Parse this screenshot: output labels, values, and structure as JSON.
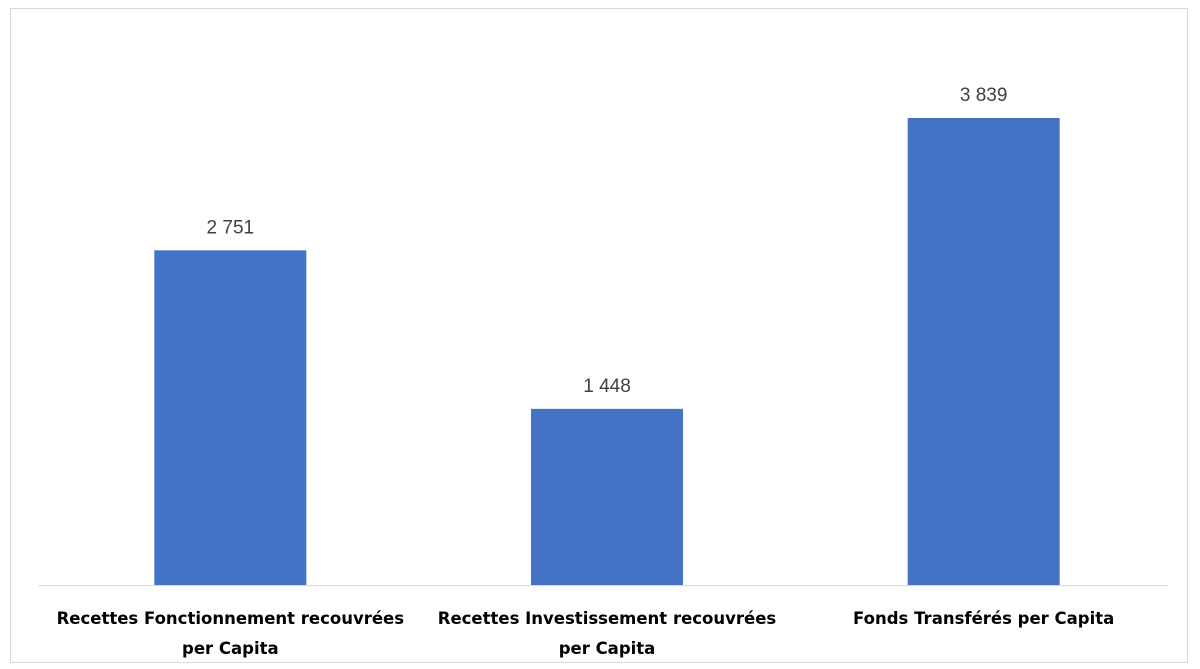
{
  "chart_data": {
    "type": "bar",
    "categories": [
      [
        "Recettes Fonctionnement recouvrées",
        "per Capita"
      ],
      [
        "Recettes Investissement  recouvrées",
        "per Capita"
      ],
      [
        "Fonds Transférés per Capita"
      ]
    ],
    "values": [
      2751,
      1448,
      3839
    ],
    "value_labels": [
      "2 751",
      "1 448",
      "3 839"
    ],
    "title": "",
    "xlabel": "",
    "ylabel": "",
    "ylim": [
      0,
      4500
    ],
    "grid": false,
    "legend": "none",
    "bar_color": "#4472c4"
  }
}
